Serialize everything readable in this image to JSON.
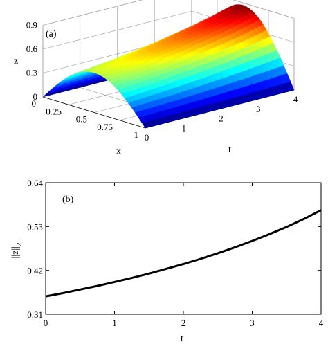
{
  "chart_data": [
    {
      "type": "surface",
      "panel_label": "(a)",
      "zlabel": "z",
      "xlabel": "x",
      "tlabel": "t",
      "x_ticks": [
        "0",
        "0.25",
        "0.5",
        "0.75",
        "1"
      ],
      "t_ticks": [
        "0",
        "1",
        "2",
        "3",
        "4"
      ],
      "z_ticks": [
        "0",
        "0.3",
        "0.6",
        "0.9"
      ],
      "x_range": [
        0,
        1
      ],
      "t_range": [
        0,
        4
      ],
      "z_range": [
        0,
        0.9
      ],
      "grid": true,
      "colormap": "jet",
      "surface_profile": "z = A(t) * sin(pi * x)",
      "amplitude_vs_t": {
        "t": [
          0,
          0.5,
          1,
          1.5,
          2,
          2.5,
          3,
          3.5,
          4
        ],
        "A": [
          0.5,
          0.53,
          0.56,
          0.6,
          0.64,
          0.69,
          0.74,
          0.8,
          0.87
        ]
      }
    },
    {
      "type": "line",
      "panel_label": "(b)",
      "xlabel": "t",
      "ylabel": "||z||",
      "ylabel_subscript": "2",
      "x_ticks": [
        "0",
        "1",
        "2",
        "3",
        "4"
      ],
      "y_ticks": [
        "0.31",
        "0.42",
        "0.53",
        "0.64"
      ],
      "xlim": [
        0,
        4
      ],
      "ylim": [
        0.31,
        0.64
      ],
      "grid": false,
      "series": [
        {
          "color": "#000000",
          "x": [
            0,
            0.25,
            0.5,
            0.75,
            1,
            1.25,
            1.5,
            1.75,
            2,
            2.25,
            2.5,
            2.75,
            3,
            3.25,
            3.5,
            3.75,
            4
          ],
          "y": [
            0.355,
            0.363,
            0.372,
            0.381,
            0.391,
            0.401,
            0.412,
            0.424,
            0.436,
            0.449,
            0.463,
            0.478,
            0.494,
            0.511,
            0.529,
            0.549,
            0.571
          ]
        }
      ]
    }
  ]
}
